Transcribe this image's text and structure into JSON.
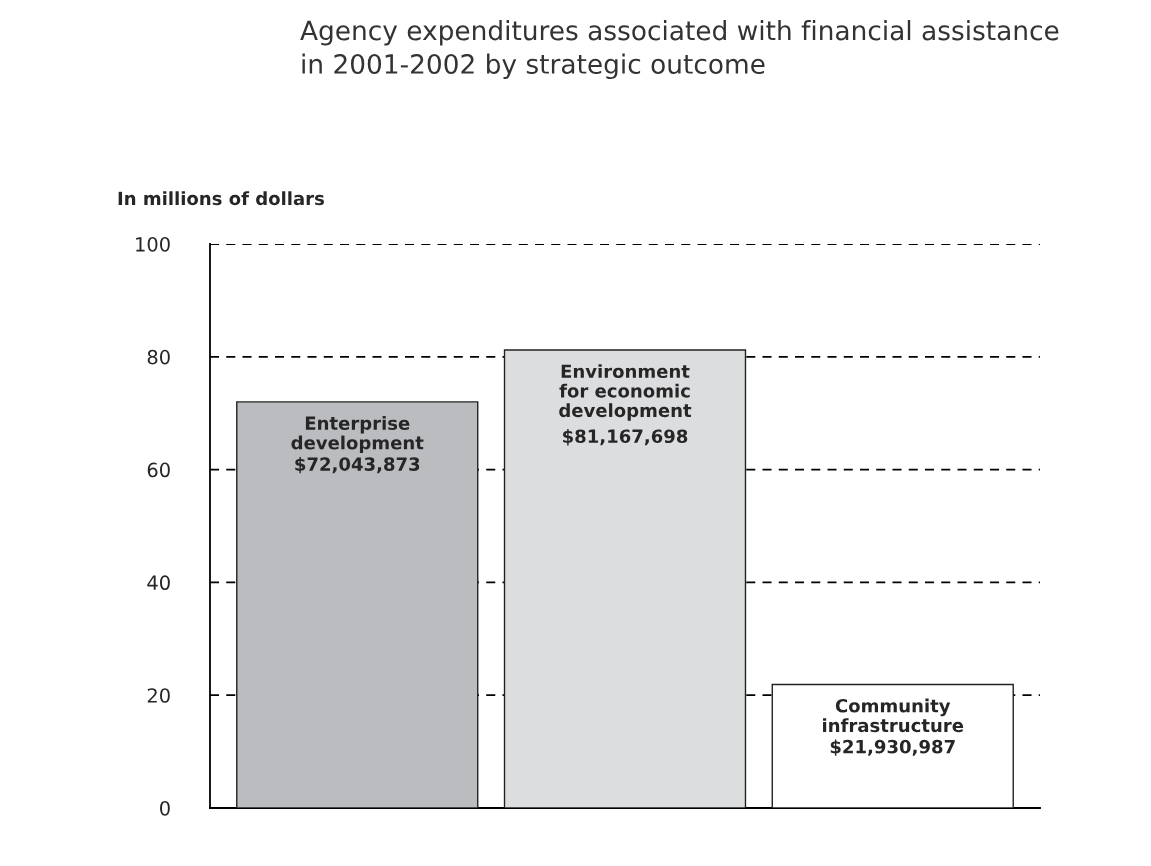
{
  "chart_data": {
    "type": "bar",
    "title": "Agency expenditures associated with financial assistance\nin 2001-2002 by strategic outcome",
    "ylabel": "In millions of dollars",
    "categories": [
      "Enterprise\ndevelopment",
      "Environment\nfor economic\ndevelopment",
      "Community\ninfrastructure"
    ],
    "values": [
      72.0,
      81.2,
      21.9
    ],
    "annotations": [
      "$72,043,873",
      "$81,167,698",
      "$21,930,987"
    ],
    "colors": [
      "#bbbcbf",
      "#dcdddf",
      "#ffffff"
    ],
    "ylim": [
      0,
      100
    ],
    "yticks": [
      0,
      20,
      40,
      60,
      80,
      100
    ],
    "grid": "y",
    "legend": false
  }
}
